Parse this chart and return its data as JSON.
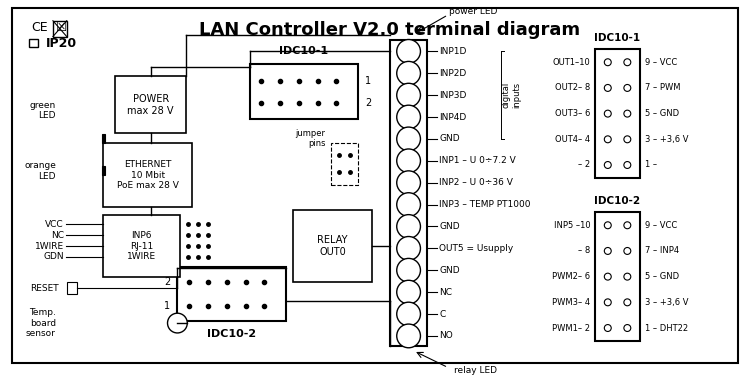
{
  "title": "LAN Controller V2.0 terminal diagram",
  "bg_color": "#ffffff",
  "border_color": "#000000",
  "text_color": "#000000",
  "fig_width": 7.5,
  "fig_height": 3.75,
  "main_connector_labels_right": [
    "INP1D",
    "INP2D",
    "INP3D",
    "INP4D",
    "GND",
    "INP1 – U 0÷7.2 V",
    "INP2 – U 0÷36 V",
    "INP3 – TEMP PT1000",
    "GND",
    "OUT5 = Usupply",
    "GND",
    "NC",
    "C",
    "NO"
  ],
  "idc10_1_left_labels": [
    "OUT1–10",
    "OUT2– 8",
    "OUT3– 6",
    "OUT4– 4",
    "– 2"
  ],
  "idc10_1_right_labels": [
    "9 – VCC",
    "7 – PWM",
    "5 – GND",
    "3 – +3,6 V",
    "1 –"
  ],
  "idc10_2_left_labels": [
    "INP5 –10",
    "– 8",
    "PWM2– 6",
    "PWM3– 4",
    "PWM1– 2"
  ],
  "idc10_2_right_labels": [
    "9 – VCC",
    "7 – INP4",
    "5 – GND",
    "3 – +3,6 V",
    "1 – DHT22"
  ]
}
